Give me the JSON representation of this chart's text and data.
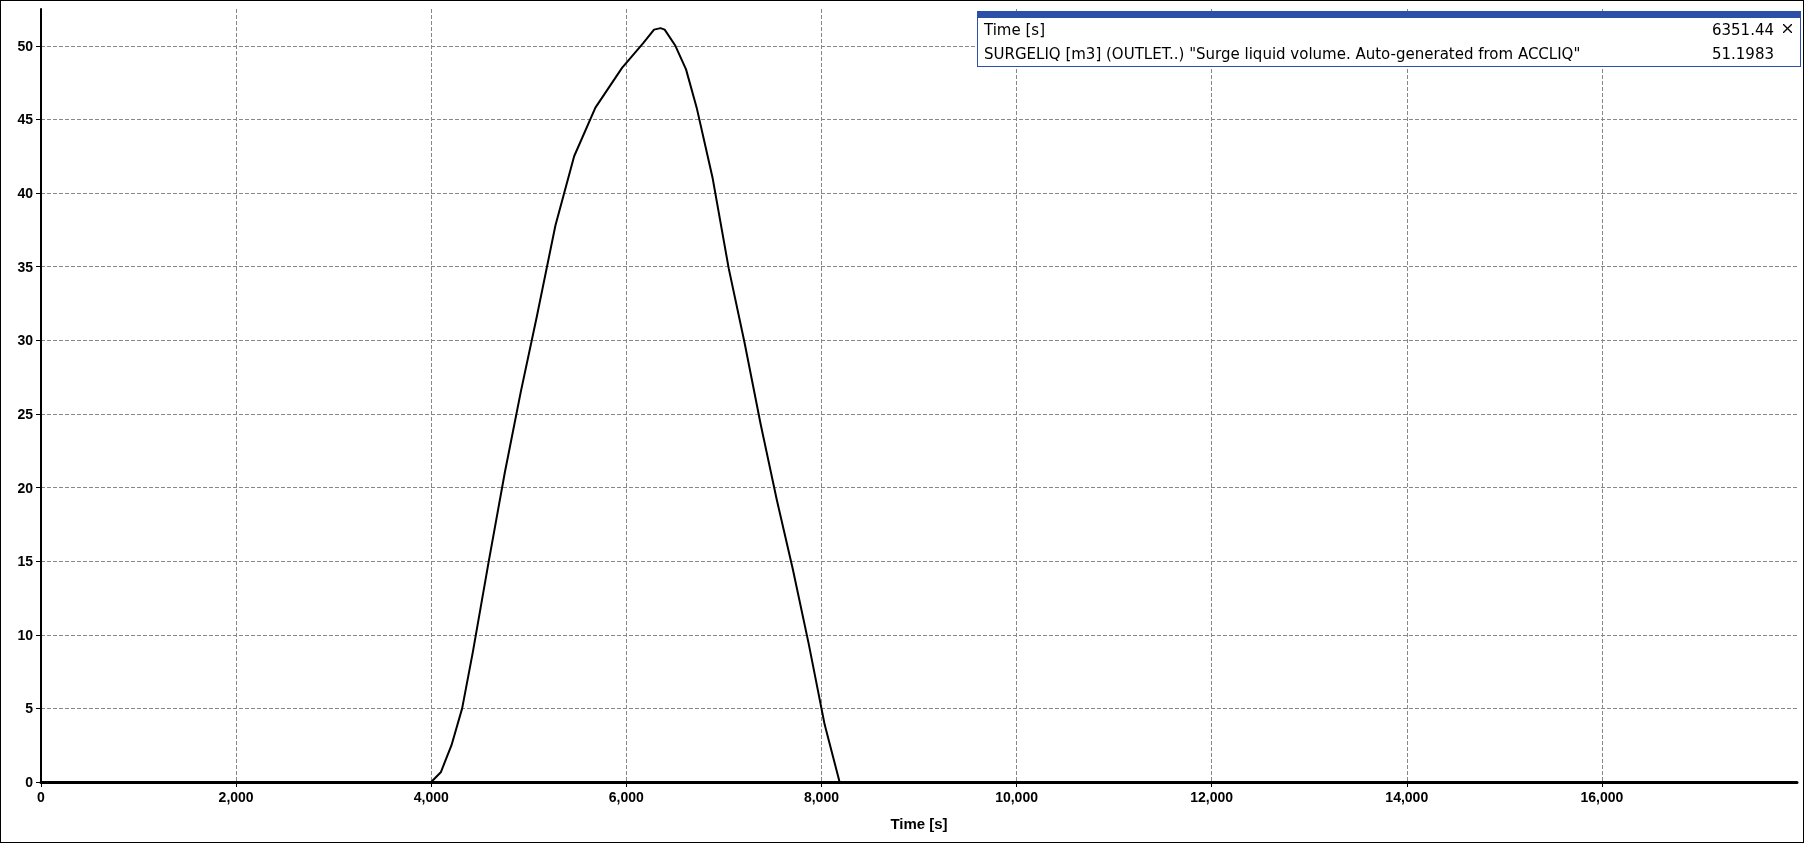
{
  "chart_data": {
    "type": "line",
    "xlabel": "Time [s]",
    "x": [
      0,
      4000,
      4098,
      4208,
      4317,
      4426,
      4590,
      4754,
      4918,
      5082,
      5273,
      5465,
      5683,
      5956,
      6175,
      6284,
      6351,
      6393,
      6503,
      6612,
      6721,
      6885,
      7049,
      7213,
      7377,
      7541,
      7705,
      7869,
      8033,
      8186,
      18000
    ],
    "series": [
      {
        "color": "#000000",
        "values": [
          0,
          0,
          0.66,
          2.5,
          5,
          8.8,
          15,
          21,
          26.5,
          31.6,
          37.8,
          42.5,
          45.8,
          48.5,
          50.2,
          51.1,
          51.2,
          51.1,
          50,
          48.4,
          45.8,
          41,
          34.9,
          29.8,
          24.3,
          19.2,
          14.5,
          9.4,
          3.9,
          0,
          0
        ]
      }
    ],
    "xlim": [
      0,
      18000
    ],
    "ylim": [
      0,
      52.5
    ],
    "xticks": [
      0,
      {
        "value": 2000,
        "label": "2,000"
      },
      {
        "value": 4000,
        "label": "4,000"
      },
      {
        "value": 6000,
        "label": "6,000"
      },
      {
        "value": 8000,
        "label": "8,000"
      },
      {
        "value": 10000,
        "label": "10,000"
      },
      {
        "value": 12000,
        "label": "12,000"
      },
      {
        "value": 14000,
        "label": "14,000"
      },
      {
        "value": 16000,
        "label": "16,000"
      }
    ],
    "yticks": [
      0,
      5,
      10,
      15,
      20,
      25,
      30,
      35,
      40,
      45,
      50
    ],
    "grid": true,
    "marker": "none",
    "line_style": "solid",
    "annotations": [
      "Time [s]",
      "6351.44",
      "SURGELIQ [m3] (OUTLET..) \"Surge liquid volume. Auto-generated from ACCLIQ\"",
      "51.1983"
    ]
  }
}
